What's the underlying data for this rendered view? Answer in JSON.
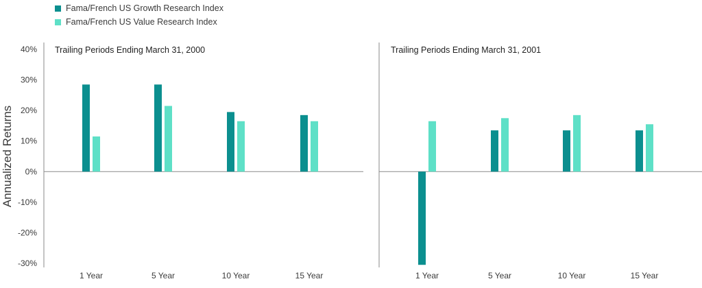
{
  "legend": [
    {
      "name": "Fama/French US Growth Research Index",
      "color": "#0b8f8f"
    },
    {
      "name": "Fama/French US Value Research Index",
      "color": "#5ee0c7"
    }
  ],
  "ylabel": "Annualized  Returns",
  "yticks": [
    "40%",
    "30%",
    "20%",
    "10%",
    "0%",
    "-10%",
    "-20%",
    "-30%"
  ],
  "chart_data": [
    {
      "type": "bar",
      "title": "Trailing Periods Ending March 31, 2000",
      "categories": [
        "1 Year",
        "5 Year",
        "10 Year",
        "15 Year"
      ],
      "series": [
        {
          "name": "Fama/French US Growth Research Index",
          "values": [
            28.5,
            28.5,
            19.5,
            18.5
          ]
        },
        {
          "name": "Fama/French US Value Research Index",
          "values": [
            11.5,
            21.5,
            16.5,
            16.5
          ]
        }
      ],
      "ylim": [
        -30,
        40
      ],
      "ylabel": "Annualized  Returns"
    },
    {
      "type": "bar",
      "title": "Trailing Periods Ending March 31, 2001",
      "categories": [
        "1 Year",
        "5 Year",
        "10 Year",
        "15 Year"
      ],
      "series": [
        {
          "name": "Fama/French US Growth Research Index",
          "values": [
            -30.5,
            13.5,
            13.5,
            13.5
          ]
        },
        {
          "name": "Fama/French US Value Research Index",
          "values": [
            16.5,
            17.5,
            18.5,
            15.5
          ]
        }
      ],
      "ylim": [
        -30,
        40
      ]
    }
  ]
}
